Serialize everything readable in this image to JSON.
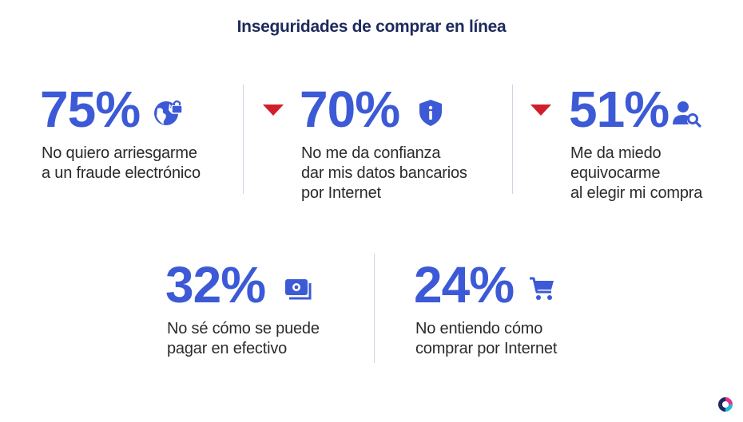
{
  "title": "Inseguridades de comprar en línea",
  "colors": {
    "accent": "#3d5ad6",
    "title": "#1e2a5e",
    "arrow": "#d11f2a",
    "text": "#2b2b2b"
  },
  "stats": [
    {
      "value": "75%",
      "icon": "globe-lock-icon",
      "text": "No quiero arriesgarme\na un fraude electrónico"
    },
    {
      "value": "70%",
      "icon": "shield-info-icon",
      "text": "No me da confianza\ndar mis datos bancarios\npor Internet",
      "trend": "down"
    },
    {
      "value": "51%",
      "icon": "user-search-icon",
      "text": "Me da miedo\nequivocarme\nal elegir mi compra",
      "trend": "down"
    },
    {
      "value": "32%",
      "icon": "cash-icon",
      "text": "No sé cómo se puede\npagar en efectivo"
    },
    {
      "value": "24%",
      "icon": "shopping-cart-icon",
      "text": "No entiendo cómo\ncomprar por Internet"
    }
  ],
  "logo": "brand-logo-icon"
}
